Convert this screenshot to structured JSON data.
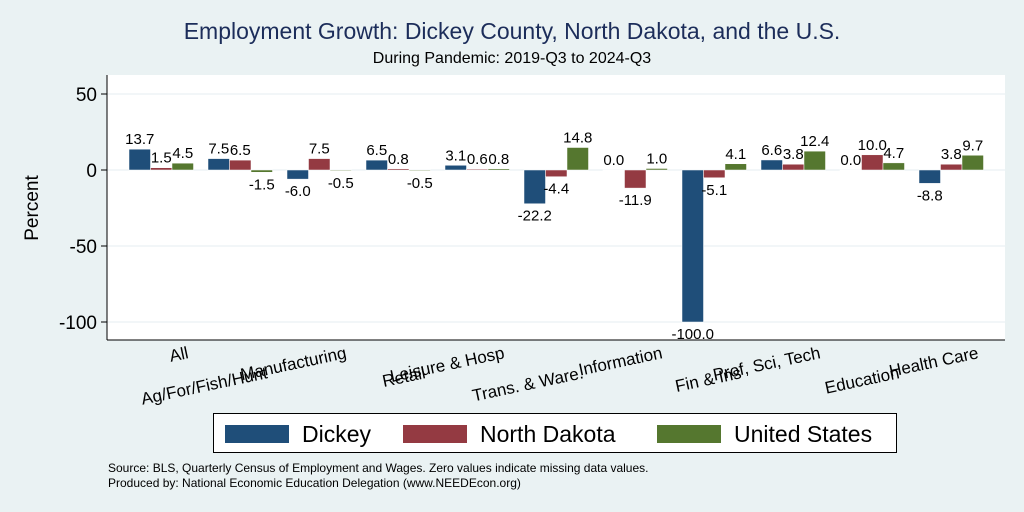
{
  "chart_data": {
    "type": "bar",
    "title": "Employment Growth: Dickey County, North Dakota, and the U.S.",
    "subtitle": "During Pandemic: 2019-Q3 to 2024-Q3",
    "xlabel": "",
    "ylabel": "Percent",
    "ylim": [
      -110,
      60
    ],
    "yticks": [
      50,
      0,
      -50,
      -100
    ],
    "grid": true,
    "legend_position": "bottom",
    "categories": [
      "All",
      "Ag/For/Fish/Hunt",
      "Manufacturing",
      "Retail",
      "Leisure & Hosp",
      "Trans. & Ware.",
      "Information",
      "Fin & Ins",
      "Prof, Sci, Tech",
      "Education",
      "Health Care"
    ],
    "series": [
      {
        "name": "Dickey",
        "color": "#1f4e79",
        "values": [
          13.7,
          7.5,
          -6.0,
          6.5,
          3.1,
          -22.2,
          0.0,
          -100.0,
          6.6,
          0.0,
          -8.8
        ]
      },
      {
        "name": "North Dakota",
        "color": "#943a42",
        "values": [
          1.5,
          6.5,
          7.5,
          0.8,
          0.6,
          -4.4,
          -11.9,
          -5.1,
          3.8,
          10.0,
          3.8
        ]
      },
      {
        "name": "United States",
        "color": "#55772f",
        "values": [
          4.5,
          -1.5,
          -0.5,
          -0.5,
          0.8,
          14.8,
          1.0,
          4.1,
          12.4,
          4.7,
          9.7
        ]
      }
    ],
    "notes": [
      "Source: BLS, Quarterly Census of Employment and Wages. Zero values indicate missing data values.",
      "Produced by: National Economic Education Delegation (www.NEEDEcon.org)"
    ]
  }
}
